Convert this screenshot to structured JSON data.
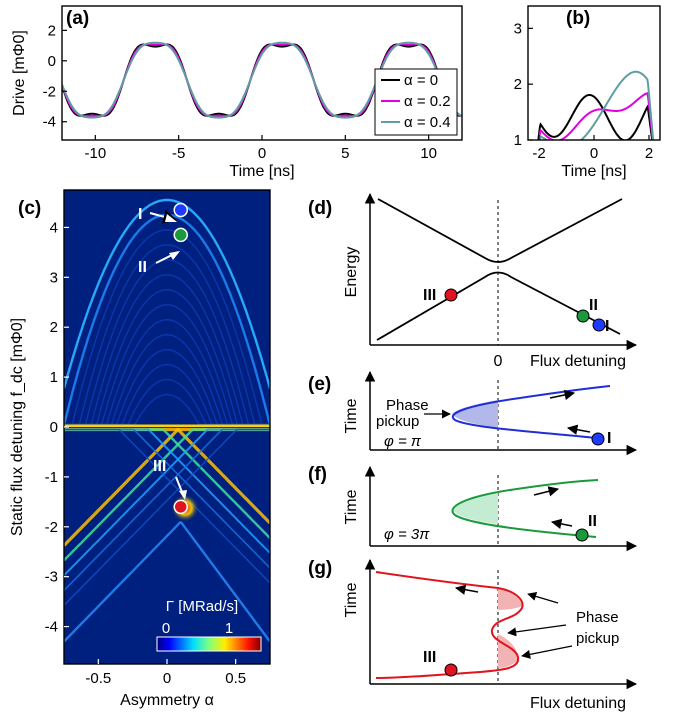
{
  "panels": {
    "a": "(a)",
    "b": "(b)",
    "c": "(c)",
    "d": "(d)",
    "e": "(e)",
    "f": "(f)",
    "g": "(g)"
  },
  "chart_data": [
    {
      "id": "a",
      "type": "line",
      "xlabel": "Time [ns]",
      "ylabel": "Drive [mΦ0]",
      "xlim": [
        -12,
        12
      ],
      "ylim": [
        -5.2,
        3.6
      ],
      "xticks": [
        "-10",
        "-5",
        "0",
        "5",
        "10"
      ],
      "yticks": [
        "-4",
        "-2",
        "0",
        "2"
      ],
      "legend": "right",
      "series": [
        {
          "name": "α = 0",
          "color": "#000000",
          "alpha": 0
        },
        {
          "name": "α = 0.2",
          "color": "#e000e0",
          "alpha": 0.2
        },
        {
          "name": "α = 0.4",
          "color": "#5f9ea0",
          "alpha": 0.4
        }
      ]
    },
    {
      "id": "b",
      "type": "line",
      "xlabel": "Time [ns]",
      "ylabel": "",
      "xlim": [
        -2.4,
        2.4
      ],
      "ylim": [
        1,
        3.4
      ],
      "xticks": [
        "-2",
        "0",
        "2"
      ],
      "yticks": [
        "1",
        "2",
        "3"
      ],
      "series": [
        {
          "name": "α = 0",
          "color": "#000000",
          "alpha": 0
        },
        {
          "name": "α = 0.2",
          "color": "#e000e0",
          "alpha": 0.2
        },
        {
          "name": "α = 0.4",
          "color": "#5f9ea0",
          "alpha": 0.4
        }
      ]
    },
    {
      "id": "c",
      "type": "heatmap",
      "xlabel": "Asymmetry α",
      "ylabel": "Static flux detuning f_dc [mΦ0]",
      "xlim": [
        -0.75,
        0.75
      ],
      "ylim": [
        -4.75,
        4.75
      ],
      "xticks": [
        "-0.5",
        "0",
        "0.5"
      ],
      "yticks": [
        "4",
        "3",
        "2",
        "1",
        "0",
        "-1",
        "-2",
        "-3",
        "-4"
      ],
      "colorbar": {
        "label": "Γ [MRad/s]",
        "min": "0",
        "max": "1"
      },
      "markers": [
        {
          "label": "I",
          "alpha": 0.1,
          "fdc": 4.35,
          "color": "#1e3cff"
        },
        {
          "label": "II",
          "alpha": 0.1,
          "fdc": 3.85,
          "color": "#1a9a3c"
        },
        {
          "label": "III",
          "alpha": 0.1,
          "fdc": -1.6,
          "color": "#e0141e"
        }
      ]
    },
    {
      "id": "d",
      "type": "diagram",
      "ylabel": "Energy",
      "xlabel": "Flux detuning",
      "zero_label": "0",
      "points": [
        "III",
        "II",
        "I"
      ]
    },
    {
      "id": "e",
      "type": "diagram",
      "ylabel": "Time",
      "phase_text_1": "Phase",
      "phase_text_2": "pickup",
      "phi": "φ = π",
      "point": "I"
    },
    {
      "id": "f",
      "type": "diagram",
      "ylabel": "Time",
      "phi": "φ = 3π",
      "point": "II"
    },
    {
      "id": "g",
      "type": "diagram",
      "ylabel": "Time",
      "xlabel": "Flux detuning",
      "phase_text_1": "Phase",
      "phase_text_2": "pickup",
      "point": "III"
    }
  ]
}
